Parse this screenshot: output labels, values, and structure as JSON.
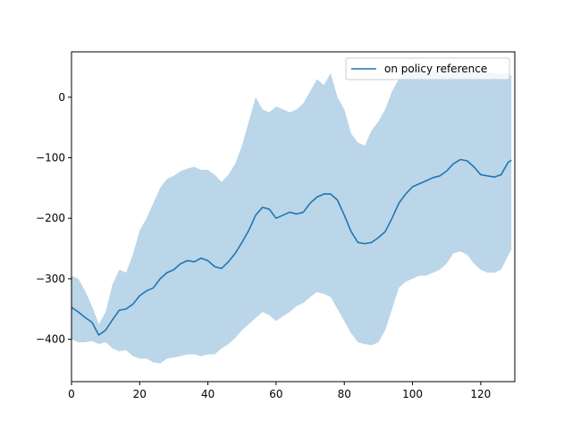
{
  "chart_data": {
    "type": "line",
    "title": "",
    "xlabel": "",
    "ylabel": "",
    "xlim": [
      0,
      130
    ],
    "ylim": [
      -470,
      75
    ],
    "grid": false,
    "legend_position": "top-right",
    "x_ticks": [
      0,
      20,
      40,
      60,
      80,
      100,
      120
    ],
    "y_ticks": [
      0,
      -100,
      -200,
      -300,
      -400
    ],
    "x_tick_labels": [
      "0",
      "20",
      "40",
      "60",
      "80",
      "100",
      "120"
    ],
    "y_tick_labels": [
      "0",
      "−100",
      "−200",
      "−300",
      "−400"
    ],
    "series": [
      {
        "name": "on policy reference",
        "color": "#1f77b4",
        "band_color": "#1f77b4",
        "band_opacity": 0.3,
        "x": [
          0,
          2,
          4,
          6,
          8,
          10,
          12,
          14,
          16,
          18,
          20,
          22,
          24,
          26,
          28,
          30,
          32,
          34,
          36,
          38,
          40,
          42,
          44,
          46,
          48,
          50,
          52,
          54,
          56,
          58,
          60,
          62,
          64,
          66,
          68,
          70,
          72,
          74,
          76,
          78,
          80,
          82,
          84,
          86,
          88,
          90,
          92,
          94,
          96,
          98,
          100,
          102,
          104,
          106,
          108,
          110,
          112,
          114,
          116,
          118,
          120,
          122,
          124,
          126,
          128,
          129
        ],
        "mean": [
          -347,
          -355,
          -364,
          -372,
          -393,
          -385,
          -368,
          -352,
          -350,
          -342,
          -328,
          -320,
          -315,
          -300,
          -290,
          -285,
          -275,
          -270,
          -272,
          -266,
          -270,
          -280,
          -283,
          -272,
          -258,
          -240,
          -220,
          -195,
          -182,
          -185,
          -200,
          -195,
          -190,
          -193,
          -190,
          -175,
          -165,
          -160,
          -160,
          -170,
          -195,
          -222,
          -240,
          -242,
          -240,
          -232,
          -222,
          -200,
          -175,
          -160,
          -148,
          -143,
          -138,
          -133,
          -130,
          -122,
          -110,
          -103,
          -105,
          -115,
          -128,
          -130,
          -132,
          -128,
          -108,
          -104
        ],
        "upper": [
          -295,
          -300,
          -320,
          -345,
          -375,
          -355,
          -310,
          -285,
          -290,
          -260,
          -220,
          -200,
          -175,
          -150,
          -135,
          -130,
          -122,
          -118,
          -115,
          -120,
          -120,
          -128,
          -140,
          -128,
          -110,
          -80,
          -40,
          0,
          -20,
          -25,
          -15,
          -20,
          -25,
          -20,
          -10,
          10,
          30,
          20,
          40,
          0,
          -20,
          -60,
          -75,
          -80,
          -55,
          -40,
          -20,
          10,
          30,
          40,
          50,
          45,
          40,
          42,
          45,
          47,
          48,
          44,
          42,
          45,
          45,
          42,
          40,
          38,
          40,
          35
        ],
        "lower": [
          -400,
          -405,
          -405,
          -403,
          -408,
          -405,
          -415,
          -420,
          -418,
          -428,
          -432,
          -432,
          -438,
          -440,
          -432,
          -430,
          -428,
          -425,
          -425,
          -428,
          -425,
          -425,
          -415,
          -408,
          -398,
          -385,
          -375,
          -365,
          -355,
          -360,
          -370,
          -362,
          -355,
          -345,
          -340,
          -330,
          -322,
          -325,
          -330,
          -350,
          -370,
          -390,
          -405,
          -408,
          -410,
          -405,
          -385,
          -350,
          -315,
          -305,
          -300,
          -295,
          -295,
          -290,
          -285,
          -275,
          -258,
          -255,
          -260,
          -275,
          -285,
          -290,
          -290,
          -285,
          -262,
          -252
        ]
      }
    ]
  }
}
